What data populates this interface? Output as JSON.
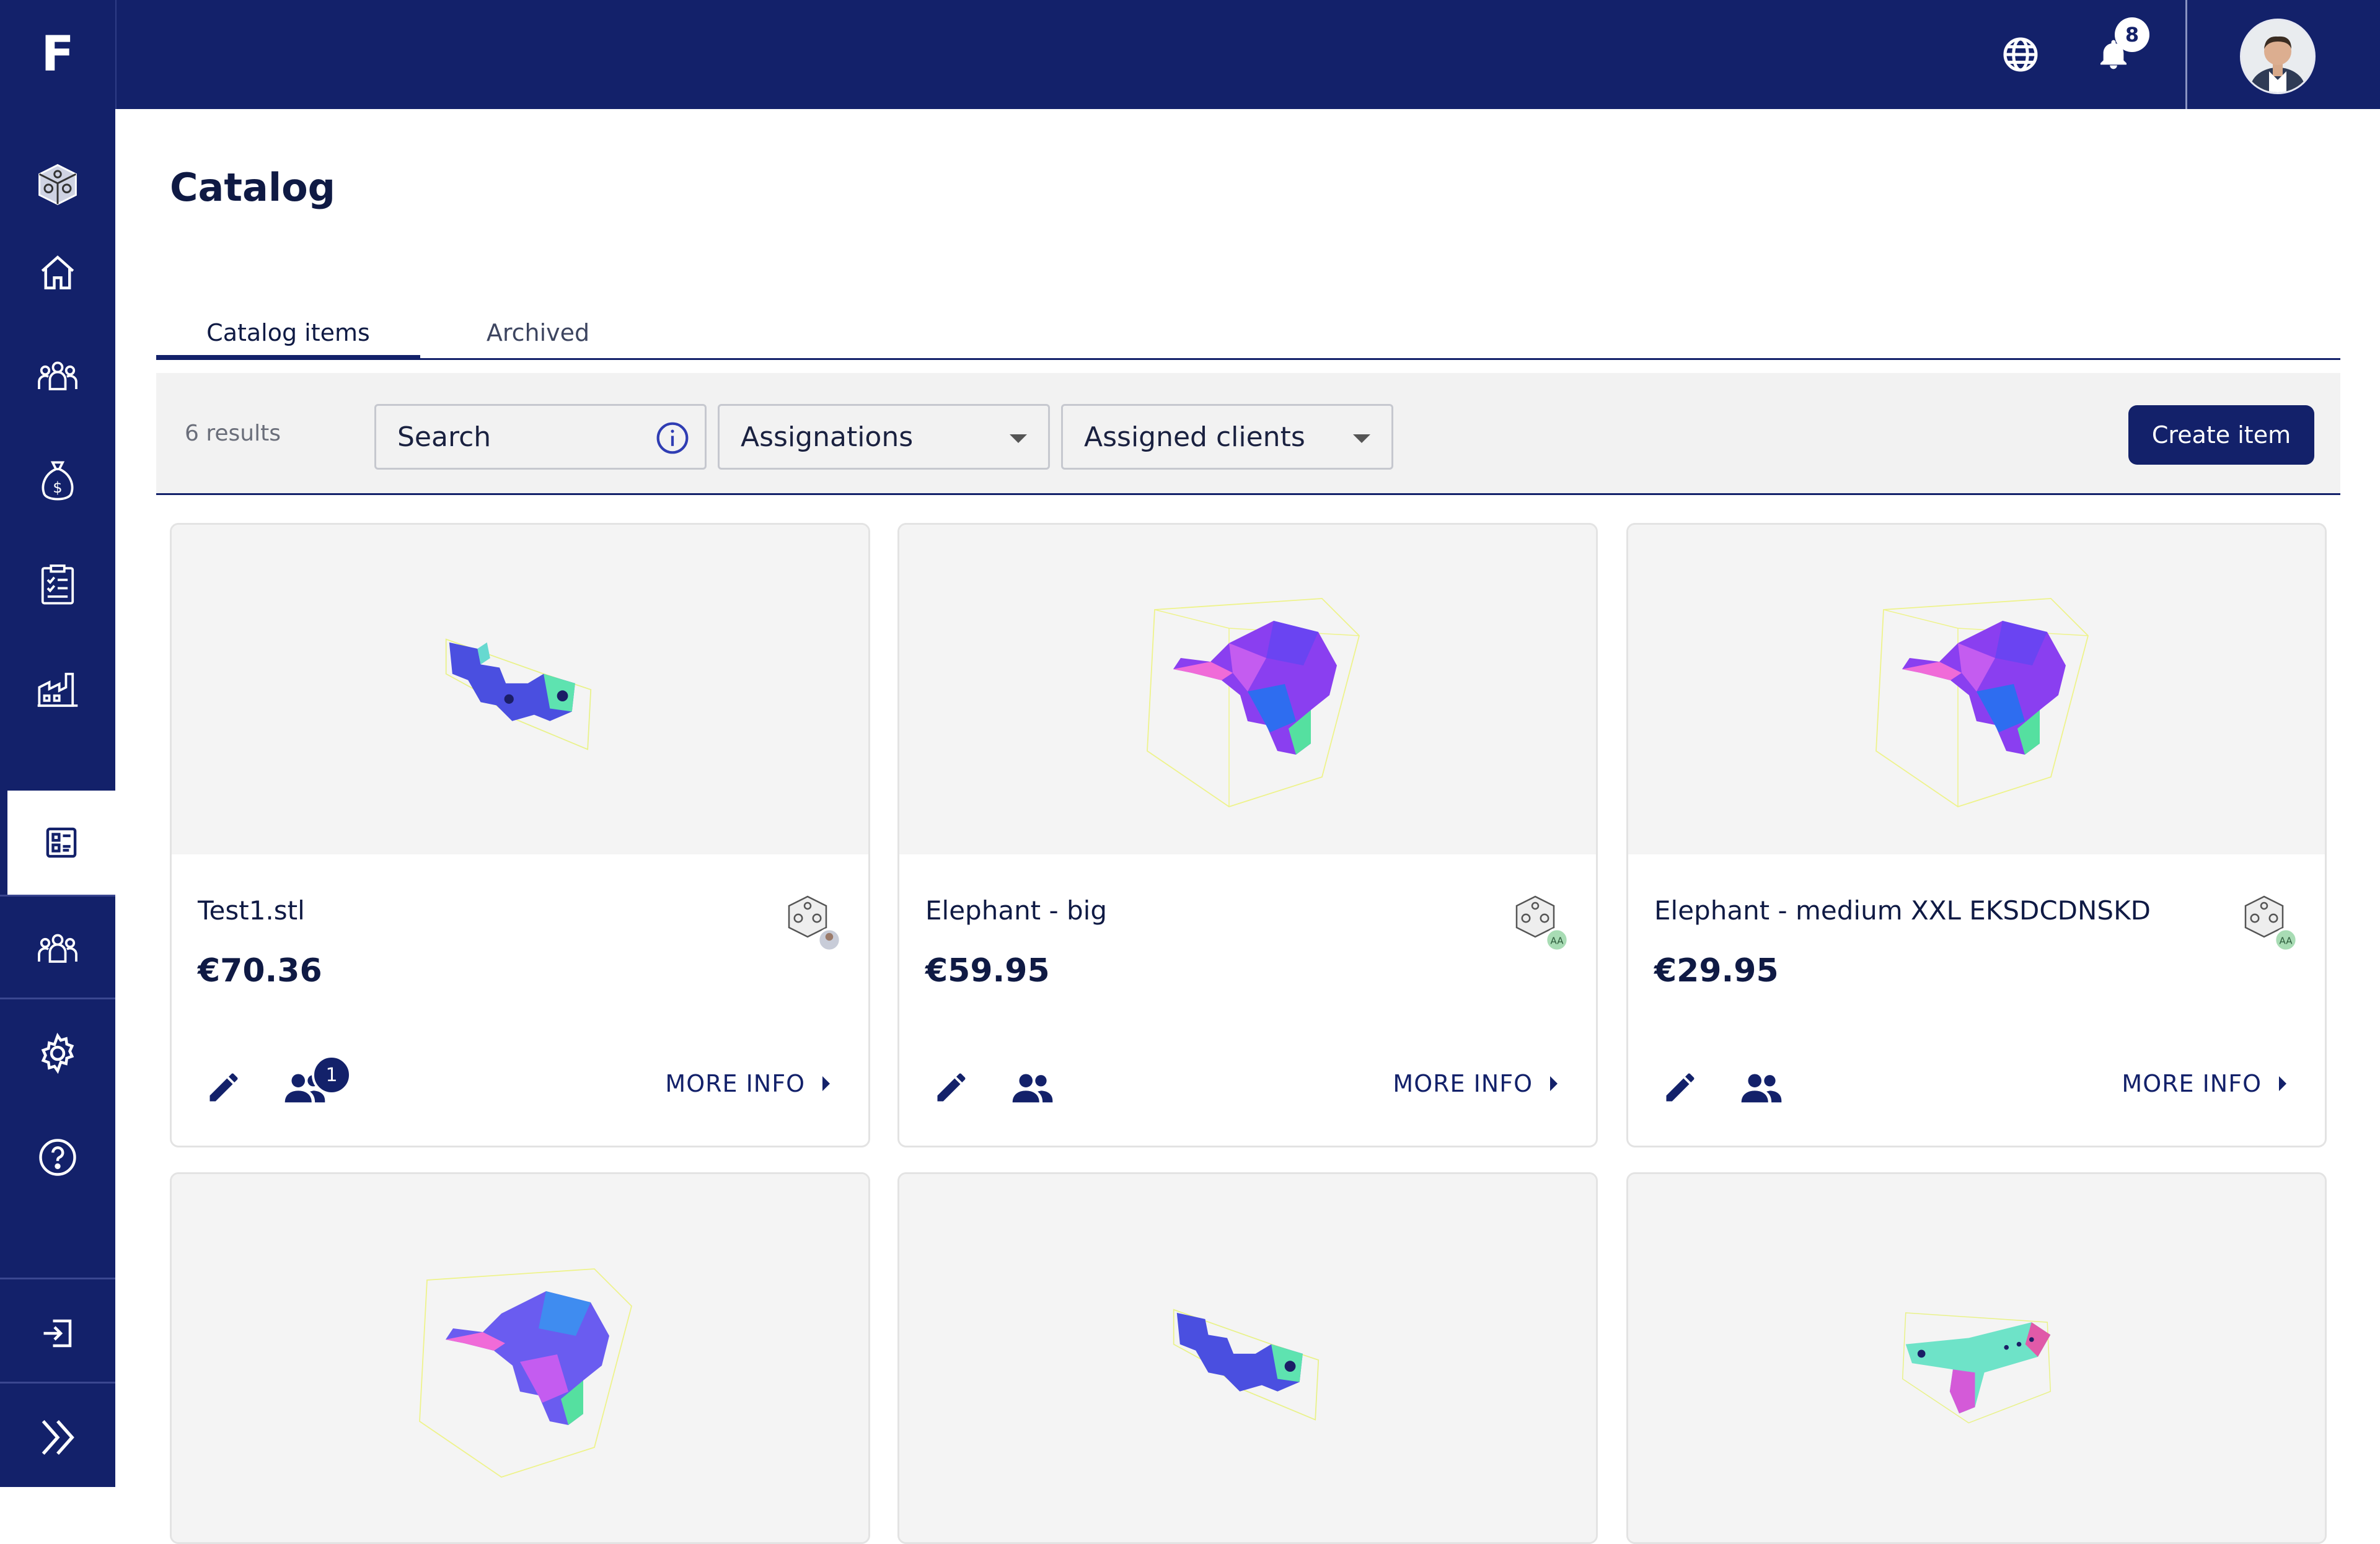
{
  "app": {
    "logo_letter": "F"
  },
  "topbar": {
    "notification_count": "8",
    "icons": [
      "globe-icon",
      "bell-icon"
    ]
  },
  "sidebar": {
    "items": [
      {
        "name": "catalog-3d-icon"
      },
      {
        "name": "home-icon"
      },
      {
        "name": "team-icon"
      },
      {
        "name": "money-bag-icon"
      },
      {
        "name": "orders-icon"
      },
      {
        "name": "factory-icon"
      },
      {
        "name": "catalog-icon",
        "active": true
      },
      {
        "name": "clients-icon"
      },
      {
        "name": "settings-icon"
      },
      {
        "name": "help-icon"
      },
      {
        "name": "logout-icon"
      },
      {
        "name": "expand-icon"
      }
    ]
  },
  "page": {
    "title": "Catalog"
  },
  "tabs": [
    {
      "label": "Catalog items",
      "active": true
    },
    {
      "label": "Archived",
      "active": false
    }
  ],
  "toolbar": {
    "results": "6 results",
    "search_placeholder": "Search",
    "assignations": "Assignations",
    "assigned_clients": "Assigned clients",
    "create_label": "Create item"
  },
  "cards": [
    {
      "name": "Test1.stl",
      "price": "€70.36",
      "more": "MORE INFO",
      "assign_count": "1",
      "owner": "photo"
    },
    {
      "name": "Elephant - big",
      "price": "€59.95",
      "more": "MORE INFO",
      "owner_initials": "AA"
    },
    {
      "name": "Elephant - medium XXL EKSDCDNSKD",
      "price": "€29.95",
      "more": "MORE INFO",
      "owner_initials": "AA"
    }
  ],
  "colors": {
    "primary": "#13216a",
    "preview_bg": "#f4f4f4",
    "toolbar_bg": "#f2f2f2"
  }
}
